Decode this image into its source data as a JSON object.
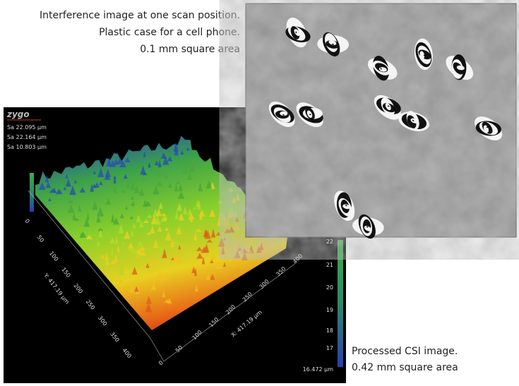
{
  "caption_top": [
    "Interference image at one scan position.",
    "Plastic case for a cell phone.",
    "0.1 mm square area"
  ],
  "caption_bottom": [
    "Processed CSI image.",
    "0.42 mm square area"
  ],
  "plot": {
    "logo": "zygo",
    "readouts": [
      "Sa 22.095 µm",
      "Sa 22.164 µm",
      "Sa 10.803 µm"
    ],
    "y_axis": {
      "label": "Y: 417.19 µm",
      "ticks": [
        "0",
        "50",
        "100",
        "150",
        "200",
        "250",
        "300",
        "350",
        "400"
      ]
    },
    "x_axis": {
      "label": "X: 417.19 µm",
      "ticks": [
        "0",
        "50",
        "100",
        "150",
        "200",
        "250",
        "300",
        "350",
        "400"
      ]
    },
    "colorbar": {
      "ticks": [
        "22",
        "21",
        "20",
        "19",
        "18",
        "17",
        "16.472 µm"
      ]
    }
  }
}
